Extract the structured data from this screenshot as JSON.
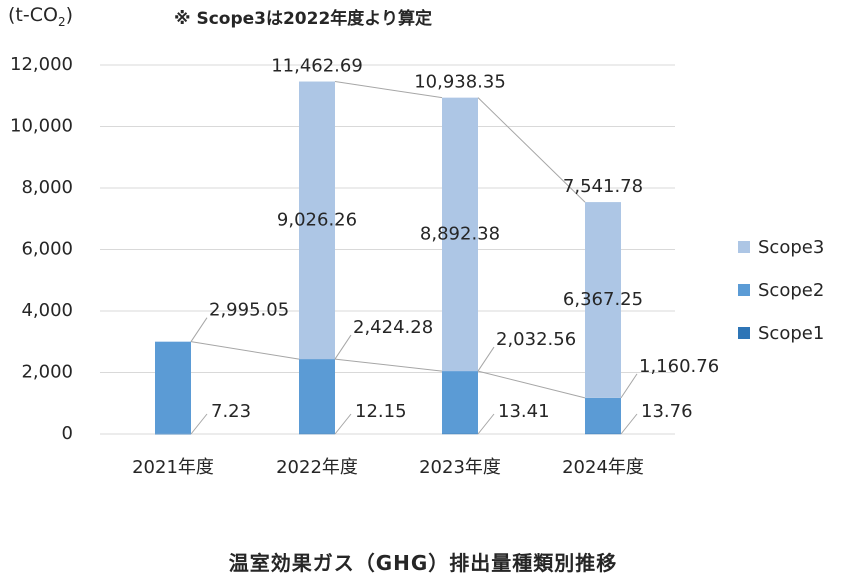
{
  "header": {
    "unit_prefix": "(t-CO",
    "unit_subscript": "2",
    "unit_suffix": ")",
    "note": "※ Scope3は2022年度より算定"
  },
  "caption": "温室効果ガス（GHG）排出量種類別推移",
  "colors": {
    "scope1": "#2e75b6",
    "scope2": "#5b9bd5",
    "scope3": "#adc6e5",
    "grid": "#d9d9d9",
    "connector": "#a6a6a6"
  },
  "chart_data": {
    "type": "bar",
    "stacked": true,
    "categories": [
      "2021年度",
      "2022年度",
      "2023年度",
      "2024年度"
    ],
    "series": [
      {
        "name": "Scope1",
        "values": [
          7.23,
          12.15,
          13.41,
          13.76
        ]
      },
      {
        "name": "Scope2",
        "values": [
          2995.05,
          2424.28,
          2032.56,
          1160.76
        ]
      },
      {
        "name": "Scope3",
        "values": [
          null,
          9026.26,
          8892.38,
          6367.25
        ]
      }
    ],
    "totals": [
      null,
      11462.69,
      10938.35,
      7541.78
    ],
    "data_labels": {
      "scope1": [
        "7.23",
        "12.15",
        "13.41",
        "13.76"
      ],
      "scope2": [
        "2,995.05",
        "2,424.28",
        "2,032.56",
        "1,160.76"
      ],
      "scope3": [
        "",
        "9,026.26",
        "8,892.38",
        "6,367.25"
      ],
      "totals": [
        "",
        "11,462.69",
        "10,938.35",
        "7,541.78"
      ]
    },
    "ylim": [
      0,
      12000
    ],
    "yticks": [
      0,
      2000,
      4000,
      6000,
      8000,
      10000,
      12000
    ],
    "ytick_labels": [
      "0",
      "2,000",
      "4,000",
      "6,000",
      "8,000",
      "10,000",
      "12,000"
    ],
    "grid": true,
    "legend_position": "right",
    "legend": [
      "Scope3",
      "Scope2",
      "Scope1"
    ]
  }
}
